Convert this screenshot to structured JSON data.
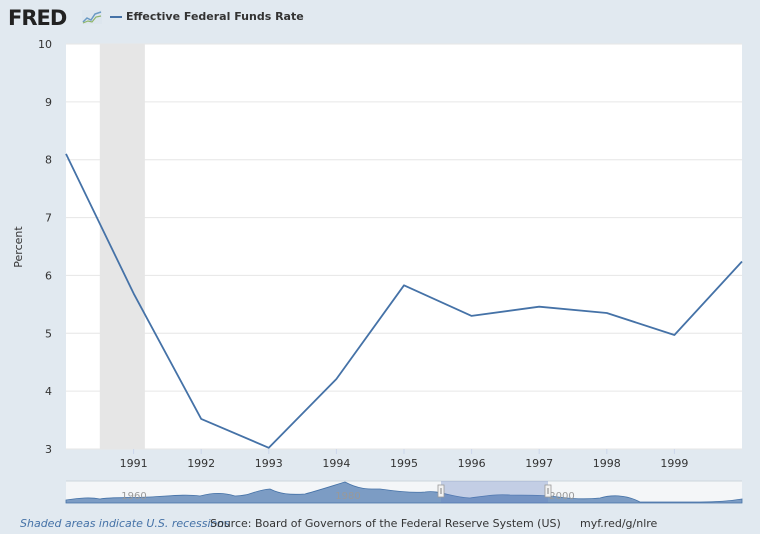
{
  "header": {
    "logo_text": "FRED",
    "logo_icon": "fred-chart-icon",
    "series_color": "#4572a7"
  },
  "chart_data": {
    "type": "line",
    "title": "",
    "xlabel": "",
    "ylabel": "Percent",
    "ylim": [
      3,
      10
    ],
    "yticks": [
      3,
      4,
      5,
      6,
      7,
      8,
      9,
      10
    ],
    "xlim": [
      1990.0,
      2000.0
    ],
    "xticks": [
      "1991",
      "1992",
      "1993",
      "1994",
      "1995",
      "1996",
      "1997",
      "1998",
      "1999"
    ],
    "series": [
      {
        "name": "Effective Federal Funds Rate",
        "color": "#4572a7",
        "x": [
          "1990",
          "1991",
          "1992",
          "1993",
          "1994",
          "1995",
          "1996",
          "1997",
          "1998",
          "1999",
          "2000"
        ],
        "y": [
          8.1,
          5.69,
          3.52,
          3.02,
          4.21,
          5.83,
          5.3,
          5.46,
          5.35,
          4.97,
          6.24
        ]
      }
    ],
    "recessions": [
      {
        "start": "1990-07",
        "end": "1991-03"
      }
    ],
    "grid": true,
    "legend": "top-left",
    "navigator": {
      "labels": [
        "1960",
        "1980",
        "2000"
      ],
      "range_start": "1990",
      "range_end": "2000"
    }
  },
  "footer": {
    "recession_note": "Shaded areas indicate U.S. recessions",
    "source": "Source: Board of Governors of the Federal Reserve System (US)",
    "link": "myf.red/g/nlre"
  }
}
